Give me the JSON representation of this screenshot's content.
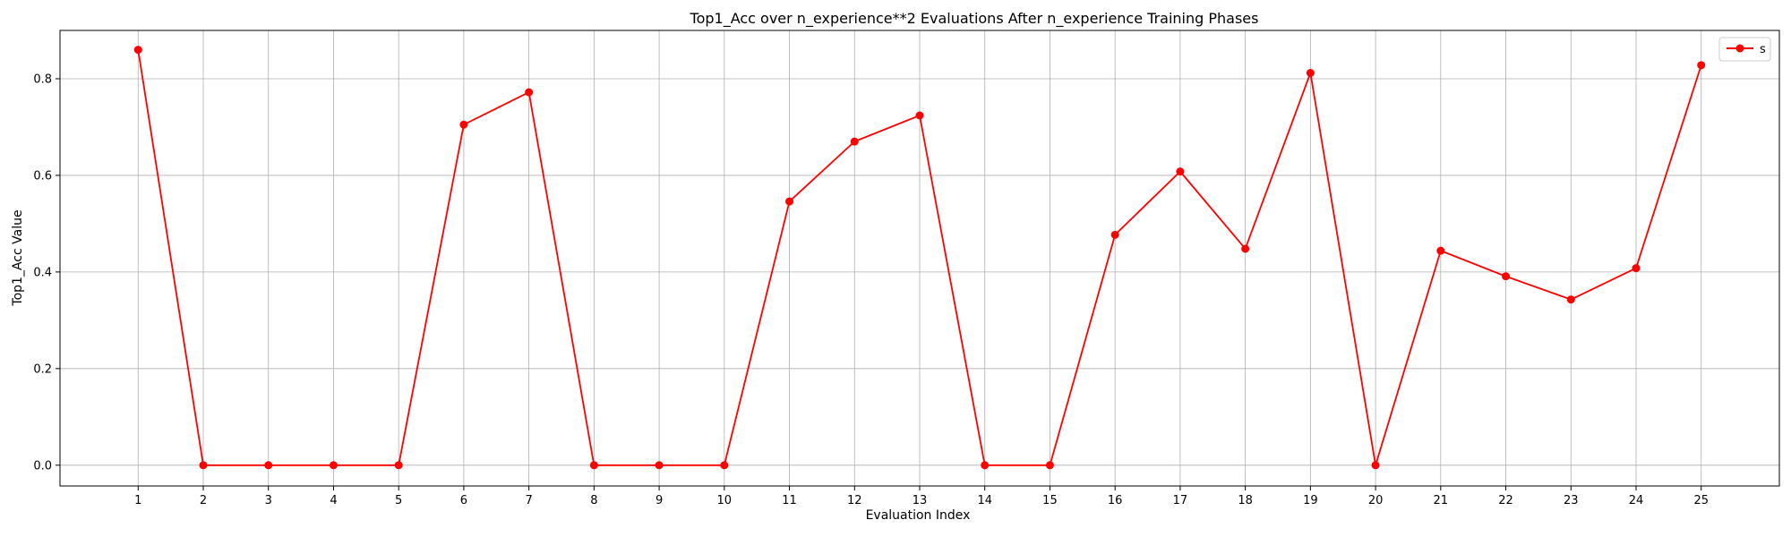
{
  "chart_data": {
    "type": "line",
    "title": "Top1_Acc over n_experience**2 Evaluations After n_experience Training Phases",
    "xlabel": "Evaluation Index",
    "ylabel": "Top1_Acc Value",
    "x": [
      1,
      2,
      3,
      4,
      5,
      6,
      7,
      8,
      9,
      10,
      11,
      12,
      13,
      14,
      15,
      16,
      17,
      18,
      19,
      20,
      21,
      22,
      23,
      24,
      25
    ],
    "xlim": [
      -0.2,
      26.2
    ],
    "ylim": [
      -0.043,
      0.9
    ],
    "yticks": [
      0.0,
      0.2,
      0.4,
      0.6,
      0.8
    ],
    "ytick_labels": [
      "0.0",
      "0.2",
      "0.4",
      "0.6",
      "0.8"
    ],
    "grid": true,
    "legend": "upper right",
    "series": [
      {
        "name": "s",
        "color": "#ff0000",
        "marker": "circle",
        "values": [
          0.86,
          0.0,
          0.0,
          0.0,
          0.0,
          0.705,
          0.772,
          0.0,
          0.0,
          0.0,
          0.546,
          0.67,
          0.724,
          0.0,
          0.0,
          0.477,
          0.608,
          0.448,
          0.812,
          0.0,
          0.444,
          0.391,
          0.343,
          0.408,
          0.828
        ]
      }
    ]
  }
}
